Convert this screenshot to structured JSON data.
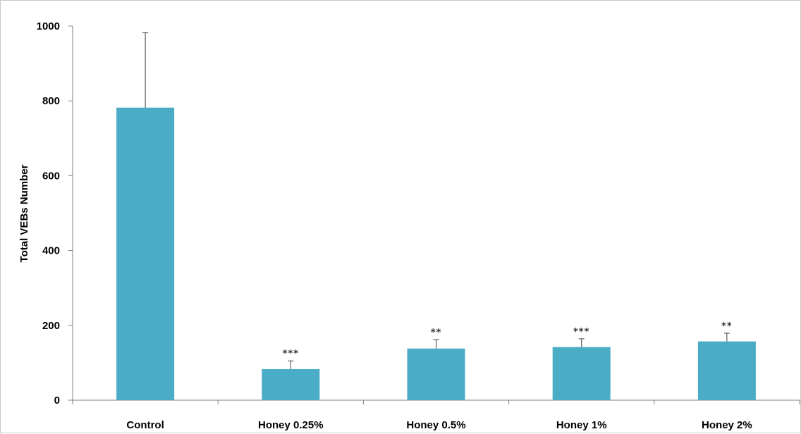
{
  "chart_data": {
    "type": "bar",
    "categories": [
      "Control",
      "Honey 0.25%",
      "Honey 0.5%",
      "Honey 1%",
      "Honey 2%"
    ],
    "values": [
      782,
      83,
      138,
      142,
      157
    ],
    "error_bars": [
      200,
      22,
      24,
      22,
      22
    ],
    "significance": [
      "",
      "***",
      "**",
      "***",
      "**"
    ],
    "xlabel": "",
    "ylabel": "Total VEBs Number",
    "ylim": [
      0,
      1000
    ],
    "yticks": [
      0,
      200,
      400,
      600,
      800,
      1000
    ],
    "grid": false,
    "colors": {
      "bar": "#4BACC6",
      "error_bar": "#404040",
      "axis": "#808080"
    }
  }
}
